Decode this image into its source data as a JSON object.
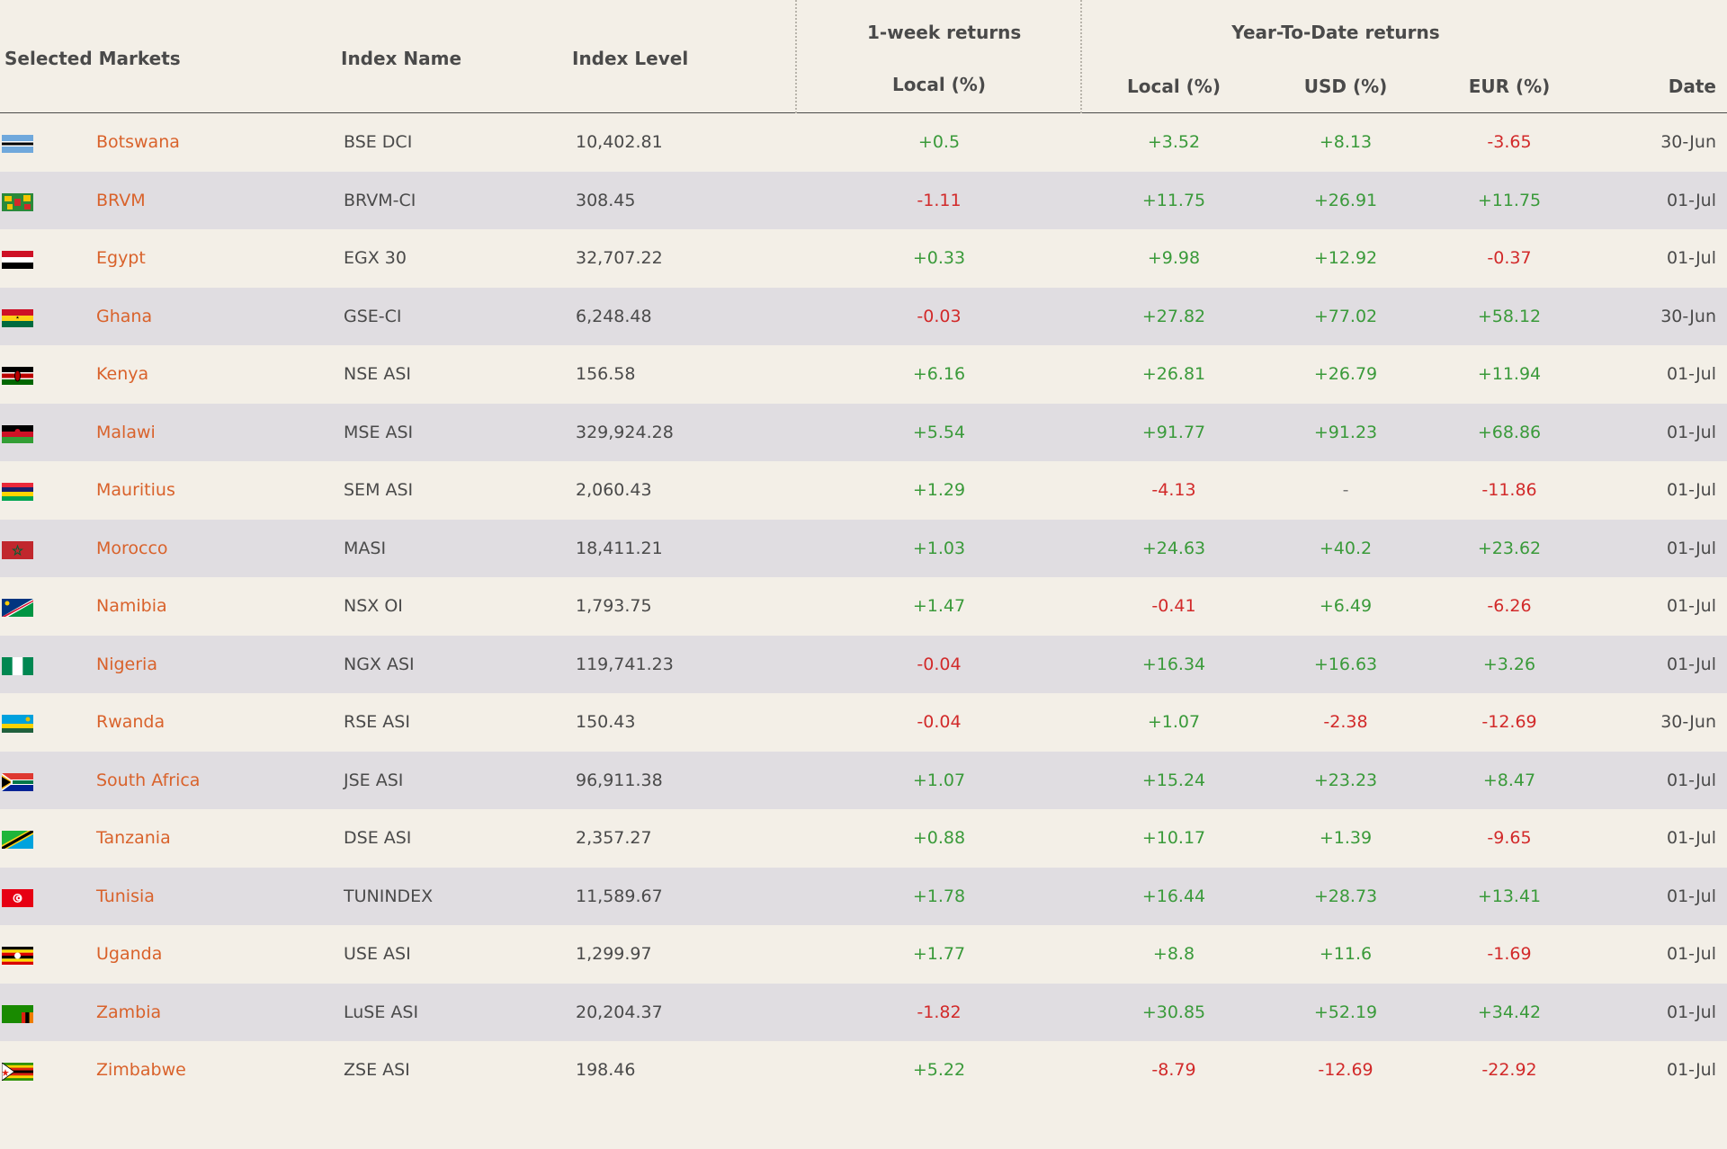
{
  "header": {
    "selected_markets": "Selected Markets",
    "index_name": "Index Name",
    "index_level": "Index Level",
    "week_group": "1-week returns",
    "week_local": "Local (%)",
    "ytd_group": "Year-To-Date returns",
    "ytd_local": "Local (%)",
    "ytd_usd": "USD (%)",
    "ytd_eur": "EUR (%)",
    "date": "Date"
  },
  "colors": {
    "positive": "#3a9a3a",
    "negative": "#d22a2a",
    "country_link": "#d9622b",
    "row_alt": "#e0dde1",
    "background": "#f3efe7"
  },
  "rows": [
    {
      "flag": "botswana-flag-icon",
      "country": "Botswana",
      "index": "BSE DCI",
      "level": "10,402.81",
      "week": "+0.5",
      "ytd_local": "+3.52",
      "ytd_usd": "+8.13",
      "ytd_eur": "-3.65",
      "date": "30-Jun"
    },
    {
      "flag": "brvm-flag-icon",
      "country": "BRVM",
      "index": "BRVM-CI",
      "level": "308.45",
      "week": "-1.11",
      "ytd_local": "+11.75",
      "ytd_usd": "+26.91",
      "ytd_eur": "+11.75",
      "date": "01-Jul"
    },
    {
      "flag": "egypt-flag-icon",
      "country": "Egypt",
      "index": "EGX 30",
      "level": "32,707.22",
      "week": "+0.33",
      "ytd_local": "+9.98",
      "ytd_usd": "+12.92",
      "ytd_eur": "-0.37",
      "date": "01-Jul"
    },
    {
      "flag": "ghana-flag-icon",
      "country": "Ghana",
      "index": "GSE-CI",
      "level": "6,248.48",
      "week": "-0.03",
      "ytd_local": "+27.82",
      "ytd_usd": "+77.02",
      "ytd_eur": "+58.12",
      "date": "30-Jun"
    },
    {
      "flag": "kenya-flag-icon",
      "country": "Kenya",
      "index": "NSE ASI",
      "level": "156.58",
      "week": "+6.16",
      "ytd_local": "+26.81",
      "ytd_usd": "+26.79",
      "ytd_eur": "+11.94",
      "date": "01-Jul"
    },
    {
      "flag": "malawi-flag-icon",
      "country": "Malawi",
      "index": "MSE ASI",
      "level": "329,924.28",
      "week": "+5.54",
      "ytd_local": "+91.77",
      "ytd_usd": "+91.23",
      "ytd_eur": "+68.86",
      "date": "01-Jul"
    },
    {
      "flag": "mauritius-flag-icon",
      "country": "Mauritius",
      "index": "SEM ASI",
      "level": "2,060.43",
      "week": "+1.29",
      "ytd_local": "-4.13",
      "ytd_usd": "-",
      "ytd_eur": "-11.86",
      "date": "01-Jul"
    },
    {
      "flag": "morocco-flag-icon",
      "country": "Morocco",
      "index": "MASI",
      "level": "18,411.21",
      "week": "+1.03",
      "ytd_local": "+24.63",
      "ytd_usd": "+40.2",
      "ytd_eur": "+23.62",
      "date": "01-Jul"
    },
    {
      "flag": "namibia-flag-icon",
      "country": "Namibia",
      "index": "NSX OI",
      "level": "1,793.75",
      "week": "+1.47",
      "ytd_local": "-0.41",
      "ytd_usd": "+6.49",
      "ytd_eur": "-6.26",
      "date": "01-Jul"
    },
    {
      "flag": "nigeria-flag-icon",
      "country": "Nigeria",
      "index": "NGX ASI",
      "level": "119,741.23",
      "week": "-0.04",
      "ytd_local": "+16.34",
      "ytd_usd": "+16.63",
      "ytd_eur": "+3.26",
      "date": "01-Jul"
    },
    {
      "flag": "rwanda-flag-icon",
      "country": "Rwanda",
      "index": "RSE ASI",
      "level": "150.43",
      "week": "-0.04",
      "ytd_local": "+1.07",
      "ytd_usd": "-2.38",
      "ytd_eur": "-12.69",
      "date": "30-Jun"
    },
    {
      "flag": "south-africa-flag-icon",
      "country": "South Africa",
      "index": "JSE ASI",
      "level": "96,911.38",
      "week": "+1.07",
      "ytd_local": "+15.24",
      "ytd_usd": "+23.23",
      "ytd_eur": "+8.47",
      "date": "01-Jul"
    },
    {
      "flag": "tanzania-flag-icon",
      "country": "Tanzania",
      "index": "DSE ASI",
      "level": "2,357.27",
      "week": "+0.88",
      "ytd_local": "+10.17",
      "ytd_usd": "+1.39",
      "ytd_eur": "-9.65",
      "date": "01-Jul"
    },
    {
      "flag": "tunisia-flag-icon",
      "country": "Tunisia",
      "index": "TUNINDEX",
      "level": "11,589.67",
      "week": "+1.78",
      "ytd_local": "+16.44",
      "ytd_usd": "+28.73",
      "ytd_eur": "+13.41",
      "date": "01-Jul"
    },
    {
      "flag": "uganda-flag-icon",
      "country": "Uganda",
      "index": "USE ASI",
      "level": "1,299.97",
      "week": "+1.77",
      "ytd_local": "+8.8",
      "ytd_usd": "+11.6",
      "ytd_eur": "-1.69",
      "date": "01-Jul"
    },
    {
      "flag": "zambia-flag-icon",
      "country": "Zambia",
      "index": "LuSE ASI",
      "level": "20,204.37",
      "week": "-1.82",
      "ytd_local": "+30.85",
      "ytd_usd": "+52.19",
      "ytd_eur": "+34.42",
      "date": "01-Jul"
    },
    {
      "flag": "zimbabwe-flag-icon",
      "country": "Zimbabwe",
      "index": "ZSE ASI",
      "level": "198.46",
      "week": "+5.22",
      "ytd_local": "-8.79",
      "ytd_usd": "-12.69",
      "ytd_eur": "-22.92",
      "date": "01-Jul"
    }
  ]
}
